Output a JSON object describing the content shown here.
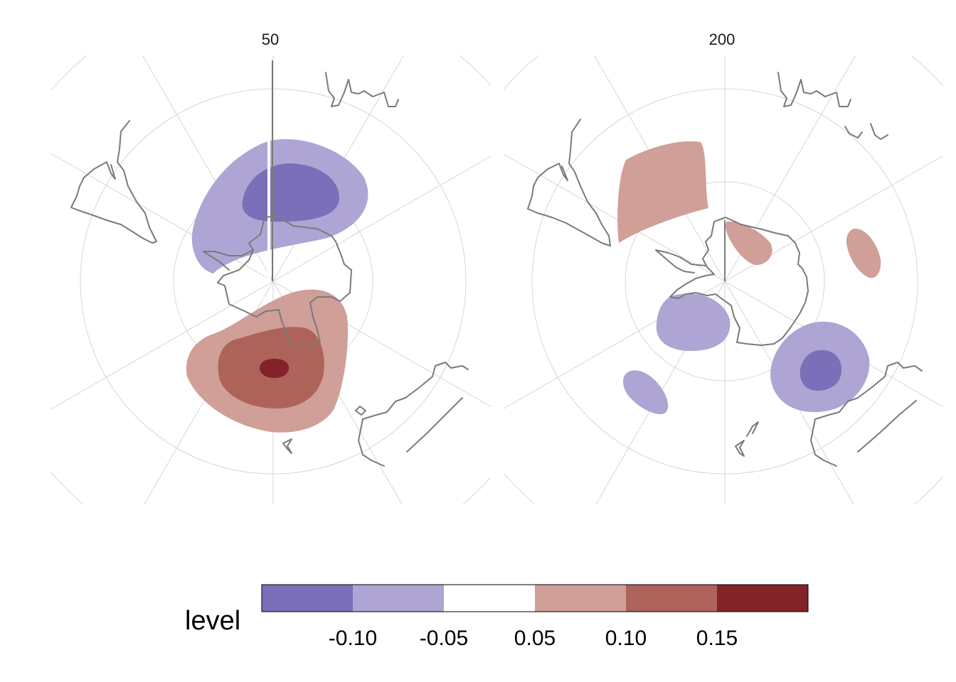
{
  "panels": [
    {
      "title": "50"
    },
    {
      "title": "200"
    }
  ],
  "legend": {
    "title": "level",
    "tick_labels": [
      "-0.10",
      "-0.05",
      "0.05",
      "0.10",
      "0.15"
    ],
    "breaks": [
      -0.15,
      -0.1,
      -0.05,
      0.05,
      0.1,
      0.15,
      0.2
    ],
    "colors": [
      "#7a6fb8",
      "#aea5d4",
      "#ffffff",
      "#cf9f98",
      "#ad635a",
      "#84222a"
    ]
  },
  "chart_data": {
    "type": "heatmap",
    "description_free": true,
    "projection": "south-polar-stereographic",
    "variable": "level",
    "facets": [
      "50",
      "200"
    ],
    "levels": [
      -0.15,
      -0.1,
      -0.05,
      0.05,
      0.1,
      0.15,
      0.2
    ],
    "fill_colors": [
      "#7a6fb8",
      "#aea5d4",
      "#ffffff",
      "#cf9f98",
      "#ad635a",
      "#84222a"
    ],
    "grid": true,
    "legend_position": "bottom"
  }
}
